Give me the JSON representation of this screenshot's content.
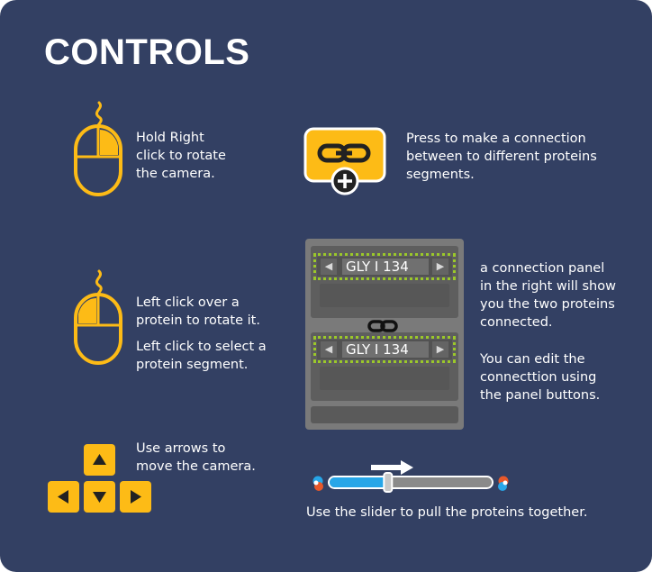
{
  "title": "CONTROLS",
  "controls": {
    "rotate_camera": "Hold Right\nclick to rotate\nthe camera.",
    "make_connection": "Press to make a connection\nbetween to different proteins\nsegments.",
    "rotate_protein": "Left click over a\nprotein to rotate it.",
    "select_segment": "Left click to select a\nprotein segment.",
    "connection_panel": "a connection panel\nin the right will show\nyou the two proteins\nconnected.",
    "edit_connection": "You can edit the\nconnecttion using\nthe panel buttons.",
    "move_camera": "Use arrows to\nmove the camera.",
    "slider_hint": "Use the slider to pull the proteins together."
  },
  "connection_panel": {
    "segment_a": "GLY I 134",
    "segment_b": "GLY I 134"
  },
  "slider": {
    "value": 0.36
  },
  "icons": {
    "mouse_right": "mouse-right-icon",
    "mouse_left": "mouse-left-icon",
    "add_connection": "add-connection-icon",
    "link": "link-icon",
    "arrow_keys": "arrow-keys-icon"
  },
  "colors": {
    "background": "#334063",
    "accent": "#fdbb16",
    "slider_fill": "#27a6e8",
    "highlight": "#9bc82a"
  }
}
